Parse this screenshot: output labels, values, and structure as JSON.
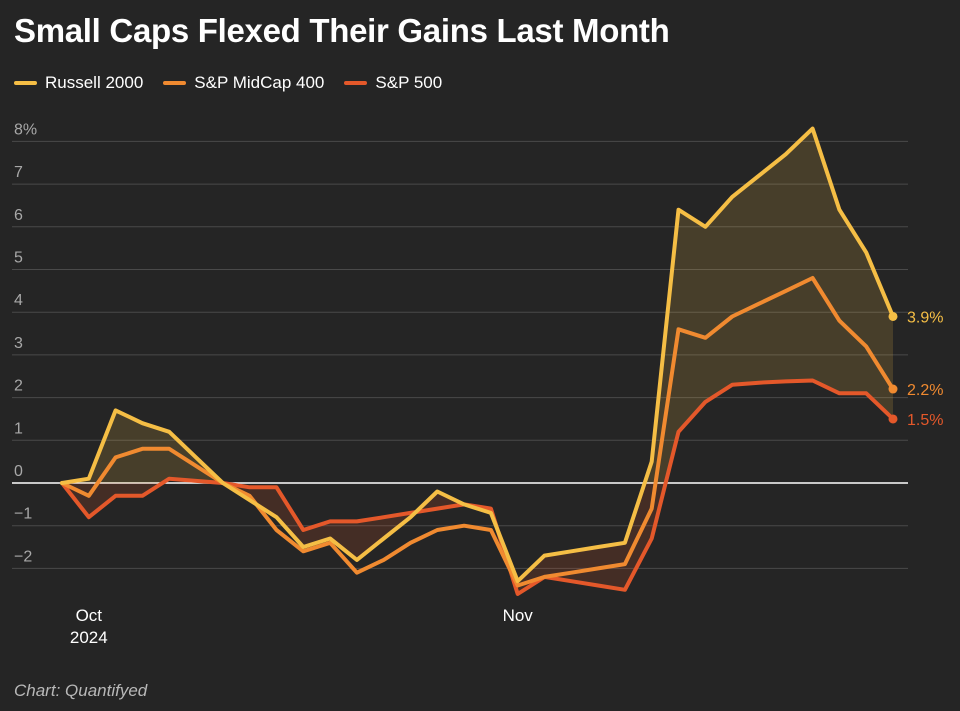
{
  "chart_data": {
    "type": "line",
    "title": "Small Caps Flexed Their Gains Last Month",
    "source": "Chart: Quantifyed",
    "xlabel": "",
    "ylabel": "",
    "ylim": [
      -2.3,
      8.3
    ],
    "y_ticks": [
      {
        "value": 8,
        "label": "8%"
      },
      {
        "value": 7,
        "label": "7"
      },
      {
        "value": 6,
        "label": "6"
      },
      {
        "value": 5,
        "label": "5"
      },
      {
        "value": 4,
        "label": "4"
      },
      {
        "value": 3,
        "label": "3"
      },
      {
        "value": 2,
        "label": "2"
      },
      {
        "value": 1,
        "label": "1"
      },
      {
        "value": 0,
        "label": "0"
      },
      {
        "value": -1,
        "label": "−1"
      },
      {
        "value": -2,
        "label": "−2"
      }
    ],
    "x_ticks": [
      {
        "index": 1,
        "label": "Oct",
        "sublabel": "2024"
      },
      {
        "index": 17,
        "label": "Nov",
        "sublabel": ""
      }
    ],
    "x": [
      0,
      1,
      2,
      3,
      4,
      5,
      6,
      7,
      8,
      9,
      10,
      11,
      12,
      13,
      14,
      15,
      16,
      17,
      18,
      19,
      20,
      21,
      22,
      23,
      24,
      25,
      26,
      27,
      28,
      29,
      30,
      31
    ],
    "series": [
      {
        "name": "Russell 2000",
        "color": "#f5be45",
        "end_label": "3.9%",
        "values": [
          0,
          0.1,
          1.7,
          1.4,
          1.2,
          0.6,
          0,
          -0.4,
          -0.8,
          -1.5,
          -1.3,
          -1.8,
          -1.3,
          -0.8,
          -0.2,
          -0.5,
          -0.7,
          -2.3,
          -1.7,
          -1.6,
          -1.5,
          -1.4,
          0.5,
          6.4,
          6.0,
          6.7,
          7.2,
          7.7,
          8.3,
          6.4,
          5.4,
          3.9
        ]
      },
      {
        "name": "S&P MidCap 400",
        "color": "#f08a30",
        "end_label": "2.2%",
        "values": [
          0,
          -0.3,
          0.6,
          0.8,
          0.8,
          0.4,
          0,
          -0.3,
          -1.1,
          -1.6,
          -1.4,
          -2.1,
          -1.8,
          -1.4,
          -1.1,
          -1.0,
          -1.1,
          -2.4,
          -2.2,
          -2.1,
          -2.0,
          -1.9,
          -0.6,
          3.6,
          3.4,
          3.9,
          4.2,
          4.5,
          4.8,
          3.8,
          3.2,
          2.2
        ]
      },
      {
        "name": "S&P 500",
        "color": "#e4582a",
        "end_label": "1.5%",
        "values": [
          0,
          -0.8,
          -0.3,
          -0.3,
          0.1,
          0.05,
          0,
          -0.1,
          -0.1,
          -1.1,
          -0.9,
          -0.9,
          -0.8,
          -0.7,
          -0.6,
          -0.5,
          -0.6,
          -2.6,
          -2.2,
          -2.3,
          -2.4,
          -2.5,
          -1.3,
          1.2,
          1.9,
          2.3,
          2.35,
          2.38,
          2.4,
          2.1,
          2.1,
          1.5
        ]
      }
    ],
    "legend_position": "top-left",
    "grid": true
  }
}
